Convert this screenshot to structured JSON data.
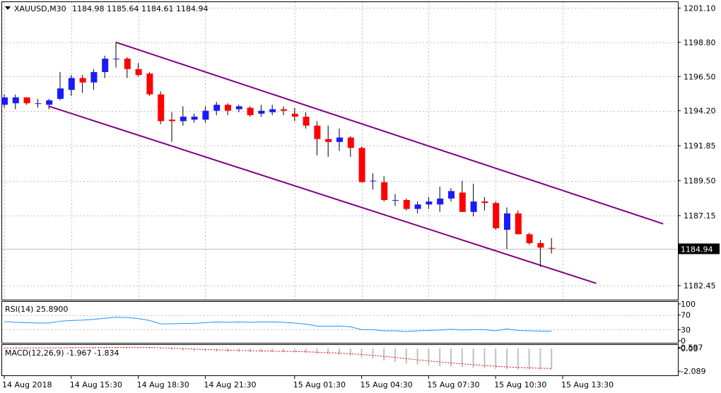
{
  "header": {
    "symbol": "XAUUSD,M30",
    "ohlc": "1184.98 1185.64 1184.61 1184.94"
  },
  "price_tag": "1184.94",
  "colors": {
    "bull": "#1a1aff",
    "bear": "#ff0000",
    "channel": "#800080",
    "rsi": "#1e90ff",
    "macd_signal": "#ff0000",
    "hist": "#c0c0c0",
    "grid": "#c0c0c0"
  },
  "chart_data": [
    {
      "type": "candlestick",
      "title": "XAUUSD,M30",
      "ylim": [
        1181.5,
        1201.5
      ],
      "y_ticks": [
        "1201.10",
        "1198.80",
        "1196.50",
        "1194.20",
        "1191.85",
        "1189.50",
        "1187.15",
        "1184.94",
        "1182.45"
      ],
      "x_ticks": [
        "14 Aug 2018",
        "14 Aug 15:30",
        "14 Aug 18:30",
        "14 Aug 21:30",
        "15 Aug 01:30",
        "15 Aug 04:30",
        "15 Aug 07:30",
        "15 Aug 10:30",
        "15 Aug 13:30"
      ],
      "candles": [
        {
          "o": 1194.6,
          "h": 1195.3,
          "l": 1194.4,
          "c": 1195.1
        },
        {
          "o": 1194.7,
          "h": 1195.3,
          "l": 1194.3,
          "c": 1195.1
        },
        {
          "o": 1195.1,
          "h": 1195.1,
          "l": 1194.6,
          "c": 1194.7
        },
        {
          "o": 1194.7,
          "h": 1195.0,
          "l": 1194.4,
          "c": 1194.7
        },
        {
          "o": 1194.6,
          "h": 1195.0,
          "l": 1194.3,
          "c": 1194.9
        },
        {
          "o": 1195.0,
          "h": 1196.8,
          "l": 1194.9,
          "c": 1195.7
        },
        {
          "o": 1195.6,
          "h": 1196.6,
          "l": 1195.2,
          "c": 1196.4
        },
        {
          "o": 1196.4,
          "h": 1196.6,
          "l": 1195.4,
          "c": 1196.1
        },
        {
          "o": 1196.1,
          "h": 1197.0,
          "l": 1195.6,
          "c": 1196.8
        },
        {
          "o": 1196.8,
          "h": 1197.9,
          "l": 1196.4,
          "c": 1197.7
        },
        {
          "o": 1197.7,
          "h": 1198.8,
          "l": 1197.1,
          "c": 1197.7
        },
        {
          "o": 1197.7,
          "h": 1197.8,
          "l": 1196.4,
          "c": 1197.0
        },
        {
          "o": 1197.0,
          "h": 1197.4,
          "l": 1196.5,
          "c": 1196.6
        },
        {
          "o": 1196.7,
          "h": 1196.8,
          "l": 1195.2,
          "c": 1195.3
        },
        {
          "o": 1195.3,
          "h": 1195.5,
          "l": 1193.3,
          "c": 1193.5
        },
        {
          "o": 1193.6,
          "h": 1194.1,
          "l": 1192.1,
          "c": 1193.5
        },
        {
          "o": 1193.5,
          "h": 1194.5,
          "l": 1193.2,
          "c": 1193.8
        },
        {
          "o": 1193.6,
          "h": 1194.0,
          "l": 1193.4,
          "c": 1193.8
        },
        {
          "o": 1193.6,
          "h": 1194.5,
          "l": 1193.4,
          "c": 1194.2
        },
        {
          "o": 1194.2,
          "h": 1194.8,
          "l": 1193.9,
          "c": 1194.6
        },
        {
          "o": 1194.6,
          "h": 1194.7,
          "l": 1193.9,
          "c": 1194.2
        },
        {
          "o": 1194.3,
          "h": 1194.6,
          "l": 1194.1,
          "c": 1194.5
        },
        {
          "o": 1194.4,
          "h": 1194.5,
          "l": 1193.8,
          "c": 1193.9
        },
        {
          "o": 1194.0,
          "h": 1194.6,
          "l": 1193.8,
          "c": 1194.2
        },
        {
          "o": 1194.1,
          "h": 1194.6,
          "l": 1193.9,
          "c": 1194.3
        },
        {
          "o": 1194.3,
          "h": 1194.5,
          "l": 1193.9,
          "c": 1194.2
        },
        {
          "o": 1194.0,
          "h": 1194.4,
          "l": 1193.5,
          "c": 1193.8
        },
        {
          "o": 1193.8,
          "h": 1194.1,
          "l": 1193.0,
          "c": 1193.2
        },
        {
          "o": 1193.2,
          "h": 1193.5,
          "l": 1191.2,
          "c": 1192.3
        },
        {
          "o": 1192.3,
          "h": 1193.2,
          "l": 1191.1,
          "c": 1192.1
        },
        {
          "o": 1192.1,
          "h": 1193.0,
          "l": 1191.5,
          "c": 1192.4
        },
        {
          "o": 1192.4,
          "h": 1192.5,
          "l": 1191.1,
          "c": 1191.7
        },
        {
          "o": 1191.7,
          "h": 1191.8,
          "l": 1189.4,
          "c": 1189.4
        },
        {
          "o": 1189.5,
          "h": 1190.0,
          "l": 1188.9,
          "c": 1189.5
        },
        {
          "o": 1189.4,
          "h": 1189.8,
          "l": 1188.1,
          "c": 1188.2
        },
        {
          "o": 1188.2,
          "h": 1188.6,
          "l": 1187.8,
          "c": 1188.2
        },
        {
          "o": 1188.2,
          "h": 1188.3,
          "l": 1187.5,
          "c": 1187.6
        },
        {
          "o": 1187.6,
          "h": 1188.1,
          "l": 1187.3,
          "c": 1187.9
        },
        {
          "o": 1187.9,
          "h": 1188.4,
          "l": 1187.6,
          "c": 1188.1
        },
        {
          "o": 1187.9,
          "h": 1189.1,
          "l": 1187.4,
          "c": 1188.3
        },
        {
          "o": 1188.3,
          "h": 1189.0,
          "l": 1188.1,
          "c": 1188.8
        },
        {
          "o": 1188.7,
          "h": 1189.5,
          "l": 1187.4,
          "c": 1187.4
        },
        {
          "o": 1187.4,
          "h": 1189.3,
          "l": 1187.1,
          "c": 1188.1
        },
        {
          "o": 1188.1,
          "h": 1188.4,
          "l": 1187.5,
          "c": 1188.0
        },
        {
          "o": 1188.0,
          "h": 1188.1,
          "l": 1186.2,
          "c": 1186.3
        },
        {
          "o": 1186.2,
          "h": 1187.7,
          "l": 1184.9,
          "c": 1187.3
        },
        {
          "o": 1187.3,
          "h": 1187.5,
          "l": 1185.9,
          "c": 1185.9
        },
        {
          "o": 1185.9,
          "h": 1186.0,
          "l": 1185.2,
          "c": 1185.3
        },
        {
          "o": 1185.3,
          "h": 1185.5,
          "l": 1183.7,
          "c": 1185.0
        },
        {
          "o": 1184.98,
          "h": 1185.64,
          "l": 1184.61,
          "c": 1184.94
        }
      ]
    },
    {
      "type": "line",
      "title": "RSI(14) 25.8900",
      "ylim": [
        0,
        100
      ],
      "y_ticks": [
        "100",
        "70",
        "30",
        "0"
      ],
      "values": [
        52,
        50,
        49,
        48,
        48,
        53,
        55,
        56,
        58,
        61,
        64,
        63,
        60,
        55,
        46,
        46,
        47,
        47,
        49,
        51,
        50,
        51,
        50,
        51,
        51,
        50,
        48,
        45,
        40,
        39,
        40,
        38,
        30,
        30,
        27,
        27,
        25,
        27,
        28,
        29,
        31,
        29,
        30,
        30,
        27,
        32,
        28,
        27,
        26,
        26
      ]
    },
    {
      "type": "bar",
      "title": "MACD(12,26,9) -1.967 -1.834",
      "ylim": [
        -2.4,
        0.2
      ],
      "y_ticks": [
        "0.597",
        "0.00",
        "-2.089"
      ],
      "histogram": [
        0.05,
        0.06,
        0.07,
        0.07,
        0.07,
        0.08,
        0.09,
        0.09,
        0.1,
        0.12,
        0.14,
        0.13,
        0.1,
        0.05,
        -0.05,
        -0.12,
        -0.18,
        -0.22,
        -0.25,
        -0.27,
        -0.29,
        -0.3,
        -0.31,
        -0.32,
        -0.33,
        -0.34,
        -0.36,
        -0.4,
        -0.48,
        -0.55,
        -0.6,
        -0.68,
        -0.82,
        -0.95,
        -1.1,
        -1.25,
        -1.38,
        -1.48,
        -1.55,
        -1.62,
        -1.66,
        -1.72,
        -1.78,
        -1.82,
        -1.88,
        -1.9,
        -1.92,
        -1.94,
        -1.96,
        -1.967
      ],
      "signal": [
        0.04,
        0.05,
        0.05,
        0.06,
        0.06,
        0.07,
        0.07,
        0.08,
        0.08,
        0.09,
        0.1,
        0.11,
        0.11,
        0.1,
        0.07,
        0.03,
        -0.01,
        -0.05,
        -0.09,
        -0.12,
        -0.15,
        -0.18,
        -0.2,
        -0.22,
        -0.24,
        -0.26,
        -0.28,
        -0.3,
        -0.34,
        -0.38,
        -0.43,
        -0.48,
        -0.55,
        -0.63,
        -0.72,
        -0.82,
        -0.93,
        -1.04,
        -1.14,
        -1.24,
        -1.33,
        -1.41,
        -1.49,
        -1.56,
        -1.63,
        -1.69,
        -1.74,
        -1.78,
        -1.81,
        -1.834
      ]
    }
  ]
}
